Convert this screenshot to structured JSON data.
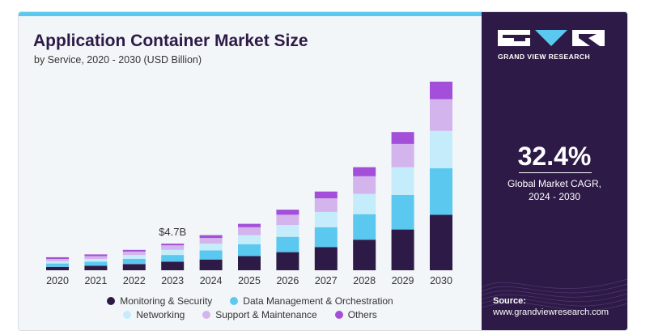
{
  "header": {
    "title": "Application Container Market Size",
    "subtitle": "by Service, 2020 - 2030 (USD Billion)"
  },
  "chart_data": {
    "type": "bar",
    "stacked": true,
    "title": "Application Container Market Size",
    "subtitle": "by Service, 2020 - 2030 (USD Billion)",
    "categories": [
      "2020",
      "2021",
      "2022",
      "2023",
      "2024",
      "2025",
      "2026",
      "2027",
      "2028",
      "2029",
      "2030"
    ],
    "series": [
      {
        "name": "Monitoring & Security",
        "color": "#2e1a47",
        "values": [
          0.6,
          0.8,
          1.1,
          1.5,
          1.9,
          2.5,
          3.2,
          4.1,
          5.4,
          7.2,
          9.8
        ]
      },
      {
        "name": "Data Management & Orchestration",
        "color": "#5bc8f0",
        "values": [
          0.6,
          0.7,
          0.9,
          1.2,
          1.6,
          2.1,
          2.7,
          3.5,
          4.5,
          6.1,
          8.2
        ]
      },
      {
        "name": "Networking",
        "color": "#c5ecfa",
        "values": [
          0.4,
          0.5,
          0.7,
          0.9,
          1.2,
          1.6,
          2.1,
          2.7,
          3.6,
          4.9,
          6.6
        ]
      },
      {
        "name": "Support & Maintenance",
        "color": "#d4b4ec",
        "values": [
          0.4,
          0.5,
          0.6,
          0.8,
          1.0,
          1.4,
          1.8,
          2.4,
          3.1,
          4.1,
          5.6
        ]
      },
      {
        "name": "Others",
        "color": "#a34fd9",
        "values": [
          0.3,
          0.3,
          0.3,
          0.3,
          0.5,
          0.6,
          0.9,
          1.2,
          1.6,
          2.1,
          3.1
        ]
      }
    ],
    "annotations": [
      {
        "category": "2023",
        "text": "$4.7B"
      }
    ],
    "grid": false,
    "legend_position": "bottom"
  },
  "sidebar": {
    "logo_text": "GRAND VIEW RESEARCH",
    "cagr_value": "32.4%",
    "cagr_label_line1": "Global Market CAGR,",
    "cagr_label_line2": "2024 - 2030",
    "source_label": "Source:",
    "source_url": "www.grandviewresearch.com"
  },
  "colors": {
    "brand_dark": "#2e1a47",
    "accent_blue": "#5bc8f0"
  }
}
